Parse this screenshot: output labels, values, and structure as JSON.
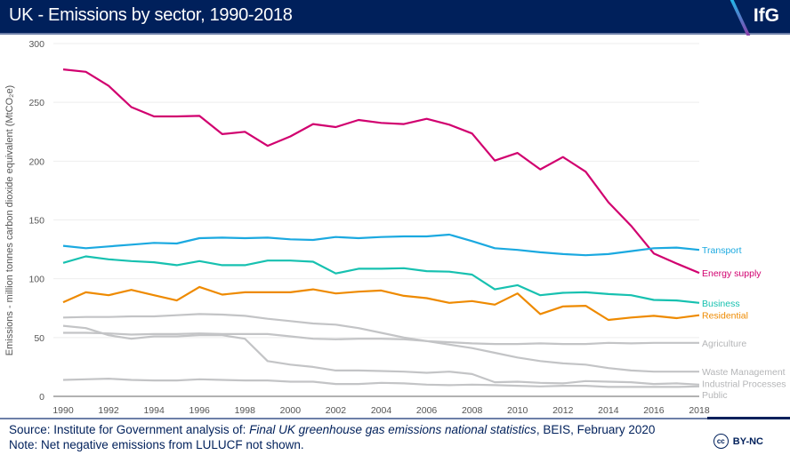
{
  "header": {
    "title": "UK - Emissions by sector, 1990-2018",
    "logo": "IfG",
    "background": "#00205b"
  },
  "footer": {
    "source_prefix": "Source: Institute for Government analysis of: ",
    "source_italic": "Final UK greenhouse gas emissions national statistics",
    "source_suffix": ", BEIS, February 2020",
    "note": "Note: Net negative emissions from LULUCF not shown.",
    "license": "BY-NC",
    "license_icon": "cc"
  },
  "chart_data": {
    "type": "line",
    "title": "UK - Emissions by sector, 1990-2018",
    "ylabel": "Emissions - million tonnes carbon dioxide equivalent (MtCO₂e)",
    "xlabel": "",
    "ylim": [
      0,
      300
    ],
    "yticks": [
      0,
      50,
      100,
      150,
      200,
      250,
      300
    ],
    "xticks": [
      1990,
      1992,
      1994,
      1996,
      1998,
      2000,
      2002,
      2004,
      2006,
      2008,
      2010,
      2012,
      2014,
      2016,
      2018
    ],
    "grid": true,
    "legend": "direct labels at right end of lines",
    "x": [
      1990,
      1991,
      1992,
      1993,
      1994,
      1995,
      1996,
      1997,
      1998,
      1999,
      2000,
      2001,
      2002,
      2003,
      2004,
      2005,
      2006,
      2007,
      2008,
      2009,
      2010,
      2011,
      2012,
      2013,
      2014,
      2015,
      2016,
      2017,
      2018
    ],
    "series": [
      {
        "name": "Transport",
        "color": "#1ba9e0",
        "values": [
          128,
          126,
          127.5,
          129,
          130.5,
          130,
          134.5,
          135,
          134.5,
          135,
          133.5,
          133,
          135.5,
          134.5,
          135.5,
          136,
          136,
          137.5,
          132,
          126,
          124.5,
          122.5,
          121,
          120,
          121,
          123.5,
          126,
          126.5,
          124.5
        ]
      },
      {
        "name": "Energy supply",
        "color": "#d1006f",
        "values": [
          278,
          276,
          264,
          246,
          238,
          238,
          238.5,
          223,
          225,
          213,
          221,
          231.5,
          229,
          235,
          232.5,
          231.5,
          236,
          231,
          223.5,
          200.5,
          207,
          193,
          203.5,
          191,
          165,
          145,
          121.5,
          113,
          105
        ]
      },
      {
        "name": "Business",
        "color": "#17c1b0",
        "values": [
          113.5,
          119,
          116.5,
          115,
          114,
          111.5,
          115,
          111.5,
          111.5,
          115.5,
          115.5,
          114.5,
          104.5,
          108.5,
          108.5,
          109,
          106.5,
          106,
          103.5,
          91,
          94.5,
          86,
          88,
          88.5,
          87,
          86,
          82,
          81.5,
          79.5
        ]
      },
      {
        "name": "Residential",
        "color": "#ee8a00",
        "values": [
          80,
          88.5,
          86,
          90.5,
          86,
          81.5,
          93,
          86.5,
          88.5,
          88.5,
          88.5,
          91,
          87.5,
          89,
          90,
          85.5,
          83.5,
          79.5,
          81,
          78,
          87.5,
          70,
          76.5,
          77,
          65,
          67,
          68.5,
          66.5,
          69
        ]
      },
      {
        "name": "Agriculture",
        "color": "#c3c4c6",
        "values": [
          54,
          54,
          53.5,
          52.5,
          53,
          53,
          53.5,
          53,
          53,
          53,
          51,
          49,
          48.5,
          49,
          49,
          48.5,
          47,
          46,
          45,
          44.5,
          44.5,
          45,
          44.5,
          44.5,
          45.5,
          45,
          45.5,
          45.5,
          45.5
        ]
      },
      {
        "name": "Waste Management",
        "color": "#c3c4c6",
        "values": [
          67,
          67.5,
          67.5,
          68,
          68,
          69,
          70,
          69.5,
          68.5,
          66,
          64,
          62,
          61,
          58,
          54,
          50,
          47,
          44,
          41,
          37,
          33,
          30,
          28,
          27,
          24,
          22,
          21,
          21,
          21
        ]
      },
      {
        "name": "Industrial Processes",
        "color": "#c3c4c6",
        "values": [
          60,
          58,
          52,
          49,
          51,
          51,
          52,
          52,
          49,
          30,
          27,
          25,
          22,
          22,
          21.5,
          21,
          20,
          21,
          19,
          12,
          12.5,
          11.5,
          11,
          13,
          12.5,
          12,
          10.5,
          11,
          10
        ]
      },
      {
        "name": "Public",
        "color": "#c3c4c6",
        "values": [
          14,
          14.5,
          15,
          14,
          13.5,
          13.5,
          14.5,
          14,
          13.5,
          13.5,
          12.5,
          12.5,
          10.5,
          10.5,
          11.5,
          11,
          10,
          9.5,
          10,
          9.5,
          9,
          8.5,
          9,
          9,
          8,
          8,
          8,
          8,
          8.5
        ]
      }
    ]
  }
}
